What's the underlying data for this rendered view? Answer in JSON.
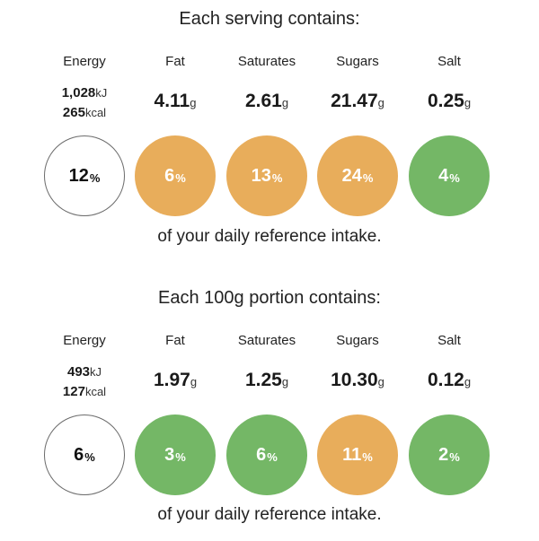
{
  "colors": {
    "low": "#74b766",
    "medium": "#e8ad5b",
    "neutral": "#ffffff",
    "neutral_border": "#6b6b6b"
  },
  "per_serving": {
    "heading": "Each serving contains:",
    "energy": {
      "label": "Energy",
      "kj_value": "1,028",
      "kj_unit": "kJ",
      "kcal_value": "265",
      "kcal_unit": "kcal",
      "ri_value": "12",
      "ri_unit": "%",
      "rating": "neutral"
    },
    "nutrients": [
      {
        "label": "Fat",
        "value": "4.11",
        "unit": "g",
        "ri_value": "6",
        "ri_unit": "%",
        "rating": "medium"
      },
      {
        "label": "Saturates",
        "value": "2.61",
        "unit": "g",
        "ri_value": "13",
        "ri_unit": "%",
        "rating": "medium"
      },
      {
        "label": "Sugars",
        "value": "21.47",
        "unit": "g",
        "ri_value": "24",
        "ri_unit": "%",
        "rating": "medium"
      },
      {
        "label": "Salt",
        "value": "0.25",
        "unit": "g",
        "ri_value": "4",
        "ri_unit": "%",
        "rating": "low"
      }
    ],
    "footer": "of your daily reference intake."
  },
  "per_100g": {
    "heading": "Each 100g portion contains:",
    "energy": {
      "label": "Energy",
      "kj_value": "493",
      "kj_unit": "kJ",
      "kcal_value": "127",
      "kcal_unit": "kcal",
      "ri_value": "6",
      "ri_unit": "%",
      "rating": "neutral"
    },
    "nutrients": [
      {
        "label": "Fat",
        "value": "1.97",
        "unit": "g",
        "ri_value": "3",
        "ri_unit": "%",
        "rating": "low"
      },
      {
        "label": "Saturates",
        "value": "1.25",
        "unit": "g",
        "ri_value": "6",
        "ri_unit": "%",
        "rating": "low"
      },
      {
        "label": "Sugars",
        "value": "10.30",
        "unit": "g",
        "ri_value": "11",
        "ri_unit": "%",
        "rating": "medium"
      },
      {
        "label": "Salt",
        "value": "0.12",
        "unit": "g",
        "ri_value": "2",
        "ri_unit": "%",
        "rating": "low"
      }
    ],
    "footer": "of your daily reference intake."
  }
}
